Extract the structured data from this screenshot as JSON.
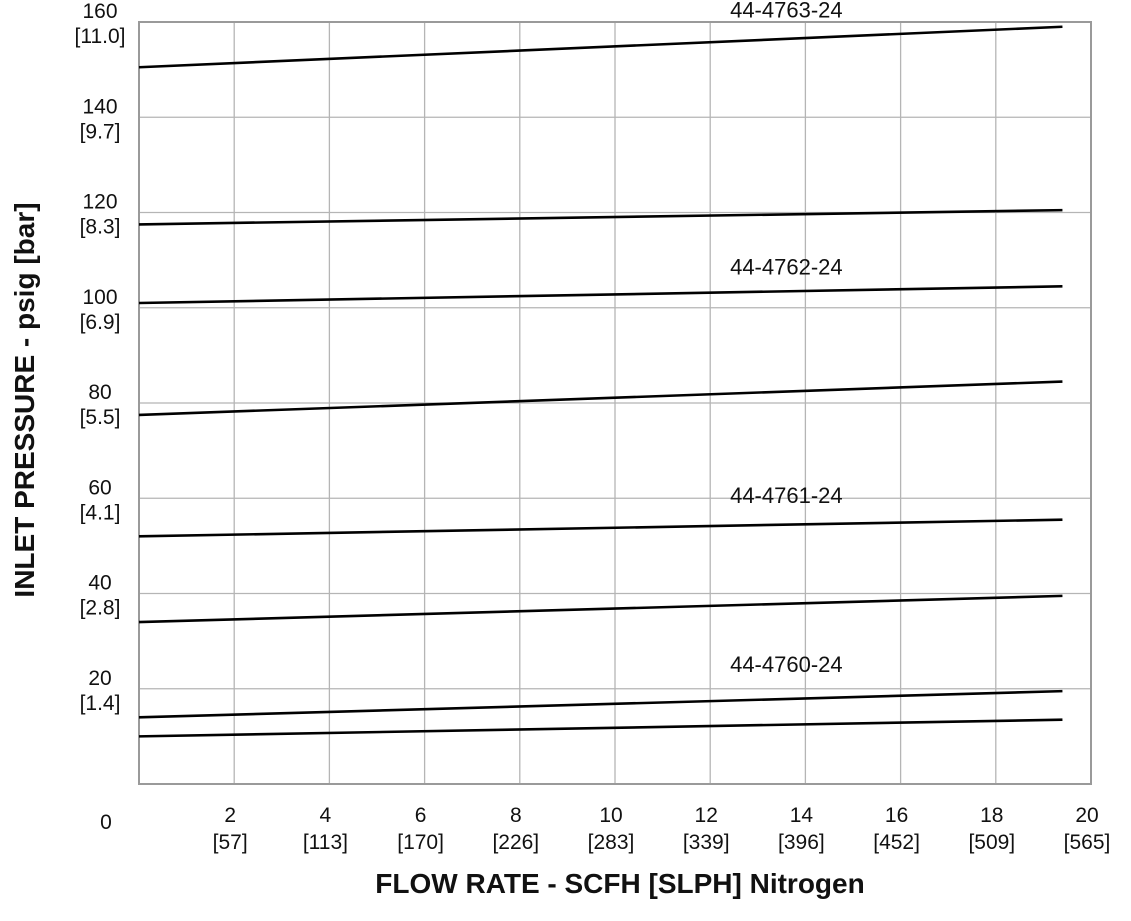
{
  "chart_data": {
    "type": "line",
    "xlabel": "FLOW RATE - SCFH [SLPH] Nitrogen",
    "ylabel": "INLET PRESSURE - psig [bar]",
    "xlim": [
      0,
      20
    ],
    "ylim": [
      0,
      160
    ],
    "grid": true,
    "x_origin_label": "0",
    "x_ticks": [
      {
        "value": 2,
        "label": "2",
        "sub": "[57]"
      },
      {
        "value": 4,
        "label": "4",
        "sub": "[113]"
      },
      {
        "value": 6,
        "label": "6",
        "sub": "[170]"
      },
      {
        "value": 8,
        "label": "8",
        "sub": "[226]"
      },
      {
        "value": 10,
        "label": "10",
        "sub": "[283]"
      },
      {
        "value": 12,
        "label": "12",
        "sub": "[339]"
      },
      {
        "value": 14,
        "label": "14",
        "sub": "[396]"
      },
      {
        "value": 16,
        "label": "16",
        "sub": "[452]"
      },
      {
        "value": 18,
        "label": "18",
        "sub": "[509]"
      },
      {
        "value": 20,
        "label": "20",
        "sub": "[565]"
      }
    ],
    "y_ticks": [
      {
        "value": 20,
        "label": "20",
        "sub": "[1.4]"
      },
      {
        "value": 40,
        "label": "40",
        "sub": "[2.8]"
      },
      {
        "value": 60,
        "label": "60",
        "sub": "[4.1]"
      },
      {
        "value": 80,
        "label": "80",
        "sub": "[5.5]"
      },
      {
        "value": 100,
        "label": "100",
        "sub": "[6.9]"
      },
      {
        "value": 120,
        "label": "120",
        "sub": "[8.3]"
      },
      {
        "value": 140,
        "label": "140",
        "sub": "[9.7]"
      },
      {
        "value": 160,
        "label": "160",
        "sub": "[11.0]"
      }
    ],
    "series": [
      {
        "name": "44-4760-24",
        "x": [
          0,
          19.4
        ],
        "y": [
          10,
          13.5
        ]
      },
      {
        "name": "44-4760-24",
        "x": [
          0,
          19.4
        ],
        "y": [
          14,
          19.5
        ]
      },
      {
        "name": "",
        "x": [
          0,
          19.4
        ],
        "y": [
          34,
          39.5
        ]
      },
      {
        "name": "44-4761-24",
        "x": [
          0,
          19.4
        ],
        "y": [
          52,
          55.5
        ]
      },
      {
        "name": "",
        "x": [
          0,
          19.4
        ],
        "y": [
          77.5,
          84.5
        ]
      },
      {
        "name": "44-4762-24",
        "x": [
          0,
          19.4
        ],
        "y": [
          101,
          104.5
        ]
      },
      {
        "name": "",
        "x": [
          0,
          19.4
        ],
        "y": [
          117.5,
          120.5
        ]
      },
      {
        "name": "44-4763-24",
        "x": [
          0,
          19.4
        ],
        "y": [
          150.5,
          159
        ]
      }
    ],
    "annotations": [
      {
        "text": "44-4763-24",
        "x": 13.6,
        "y": 161
      },
      {
        "text": "44-4762-24",
        "x": 13.6,
        "y": 107
      },
      {
        "text": "44-4761-24",
        "x": 13.6,
        "y": 59
      },
      {
        "text": "44-4760-24",
        "x": 13.6,
        "y": 23.5
      }
    ]
  }
}
